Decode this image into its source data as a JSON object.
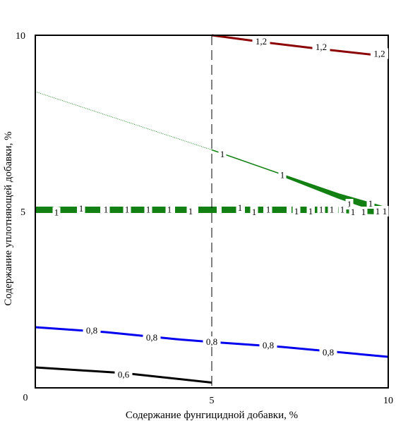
{
  "chart_data": {
    "type": "contour",
    "xlabel": "Содержание фунгицидной добавки, %",
    "ylabel": "Содержание уплотняющей добавки, %",
    "xlim": [
      0,
      10
    ],
    "ylim": [
      0,
      10
    ],
    "x_ticks": [
      "0",
      "5",
      "10"
    ],
    "y_ticks": [
      "10",
      "5",
      "0"
    ],
    "grid": false,
    "reference_line": {
      "x": 5,
      "style": "dashed"
    },
    "series": [
      {
        "level": "1,2",
        "color": "#8b0000",
        "points": [
          [
            5,
            10
          ],
          [
            6.5,
            9.8
          ],
          [
            8,
            9.62
          ],
          [
            10,
            9.4
          ]
        ],
        "labels": [
          {
            "x": 6.4,
            "y": 9.82,
            "text": "1,2"
          },
          {
            "x": 8.1,
            "y": 9.66,
            "text": "1,2"
          },
          {
            "x": 9.75,
            "y": 9.47,
            "text": "1,2"
          }
        ]
      },
      {
        "level": "1",
        "color": "#1a8a1a",
        "style": "dotted",
        "points": [
          [
            0,
            8.4
          ],
          [
            5,
            6.75
          ]
        ]
      },
      {
        "level": "1",
        "color": "#138013",
        "points": [
          [
            5,
            6.75
          ],
          [
            7,
            6.05
          ],
          [
            8.6,
            5.5
          ],
          [
            10,
            5.1
          ]
        ],
        "labels": [
          {
            "x": 5.3,
            "y": 6.62,
            "text": "1"
          },
          {
            "x": 7.0,
            "y": 6.03,
            "text": "1"
          }
        ]
      },
      {
        "level": "1",
        "color": "#138013",
        "style": "thick-dashed",
        "points": [
          [
            0,
            5.05
          ],
          [
            2,
            5.05
          ],
          [
            4,
            5.05
          ],
          [
            5,
            5.05
          ],
          [
            7,
            5.05
          ],
          [
            8.5,
            5.05
          ],
          [
            10,
            5.0
          ]
        ],
        "labels": [
          {
            "x": 0.6,
            "y": 4.97,
            "text": "1"
          },
          {
            "x": 1.3,
            "y": 5.08,
            "text": "1"
          },
          {
            "x": 2.0,
            "y": 5.05,
            "text": "1"
          },
          {
            "x": 2.6,
            "y": 5.05,
            "text": "1"
          },
          {
            "x": 3.2,
            "y": 5.05,
            "text": "1"
          },
          {
            "x": 3.8,
            "y": 5.05,
            "text": "1"
          },
          {
            "x": 4.4,
            "y": 5.0,
            "text": "1"
          },
          {
            "x": 5.8,
            "y": 5.1,
            "text": "1"
          },
          {
            "x": 6.2,
            "y": 4.98,
            "text": "1"
          },
          {
            "x": 6.6,
            "y": 5.05,
            "text": "1"
          },
          {
            "x": 7.4,
            "y": 5.0,
            "text": "1"
          },
          {
            "x": 7.8,
            "y": 5.0,
            "text": "1"
          },
          {
            "x": 8.1,
            "y": 5.05,
            "text": "1"
          },
          {
            "x": 8.4,
            "y": 5.05,
            "text": "1"
          },
          {
            "x": 8.7,
            "y": 5.05,
            "text": "1"
          },
          {
            "x": 8.9,
            "y": 5.2,
            "text": "1"
          },
          {
            "x": 9.0,
            "y": 4.98,
            "text": "1"
          },
          {
            "x": 9.3,
            "y": 4.98,
            "text": "1"
          },
          {
            "x": 9.5,
            "y": 5.22,
            "text": "1"
          },
          {
            "x": 9.7,
            "y": 5.0,
            "text": "1"
          },
          {
            "x": 9.9,
            "y": 5.0,
            "text": "1"
          }
        ]
      },
      {
        "level": "0,8",
        "color": "#0000ee",
        "points": [
          [
            0,
            1.72
          ],
          [
            2,
            1.58
          ],
          [
            4,
            1.38
          ],
          [
            5,
            1.3
          ],
          [
            7,
            1.16
          ],
          [
            10,
            0.88
          ]
        ],
        "labels": [
          {
            "x": 1.6,
            "y": 1.62,
            "text": "0,8"
          },
          {
            "x": 3.3,
            "y": 1.42,
            "text": "0,8"
          },
          {
            "x": 5.0,
            "y": 1.3,
            "text": "0,8"
          },
          {
            "x": 6.6,
            "y": 1.2,
            "text": "0,8"
          },
          {
            "x": 8.3,
            "y": 1.0,
            "text": "0,8"
          }
        ]
      },
      {
        "level": "0,6",
        "color": "#000000",
        "points": [
          [
            0,
            0.58
          ],
          [
            2.5,
            0.42
          ],
          [
            5,
            0.15
          ]
        ],
        "labels": [
          {
            "x": 2.5,
            "y": 0.37,
            "text": "0,6"
          }
        ]
      }
    ]
  }
}
